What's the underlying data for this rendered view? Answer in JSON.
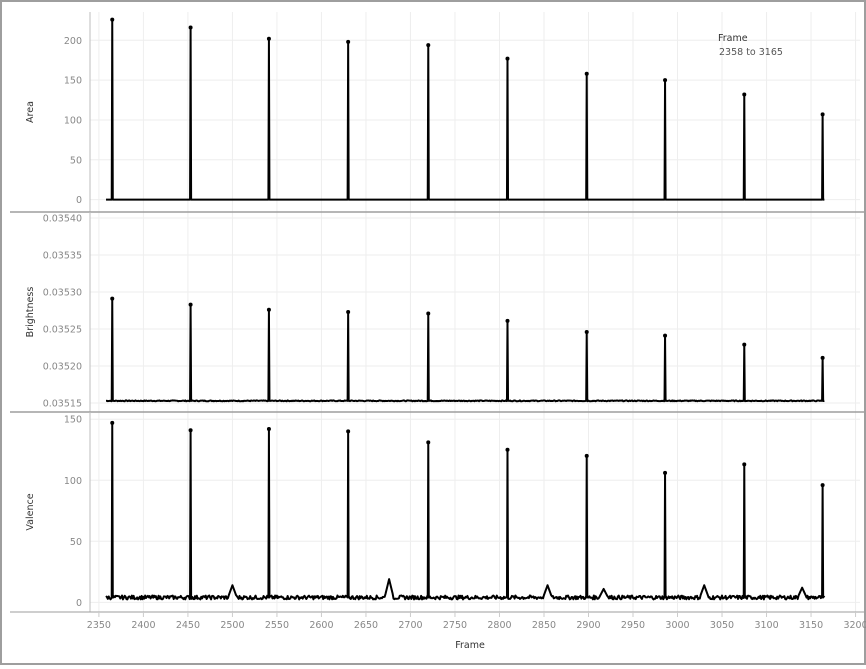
{
  "filter": {
    "title": "Frame",
    "range_text": "2358 to 3165"
  },
  "x_axis": {
    "title": "Frame",
    "ticks": [
      "2350",
      "2400",
      "2450",
      "2500",
      "2550",
      "2600",
      "2650",
      "2700",
      "2750",
      "2800",
      "2850",
      "2900",
      "2950",
      "3000",
      "3050",
      "3100",
      "3150",
      "3200"
    ]
  },
  "colors": {
    "line": "#000000",
    "grid": "#eeeeee",
    "border": "#9e9e9e",
    "tick_text": "#888888"
  },
  "chart_data": [
    {
      "type": "line",
      "ylabel": "Area",
      "xlim": [
        2340,
        3205
      ],
      "ylim": [
        -8,
        228
      ],
      "yticks": [
        "0",
        "50",
        "100",
        "150",
        "200"
      ],
      "x_range": [
        2358,
        3165
      ],
      "baseline": 0,
      "noise": 0,
      "spikes": [
        {
          "x": 2365,
          "y": 226
        },
        {
          "x": 2453,
          "y": 216
        },
        {
          "x": 2541,
          "y": 202
        },
        {
          "x": 2630,
          "y": 198
        },
        {
          "x": 2720,
          "y": 194
        },
        {
          "x": 2809,
          "y": 177
        },
        {
          "x": 2898,
          "y": 158
        },
        {
          "x": 2986,
          "y": 150
        },
        {
          "x": 3075,
          "y": 132
        },
        {
          "x": 3163,
          "y": 107
        }
      ],
      "bumps": []
    },
    {
      "type": "line",
      "ylabel": "Brightness",
      "xlim": [
        2340,
        3205
      ],
      "ylim": [
        0.035146,
        0.0354
      ],
      "yticks": [
        "0.03515",
        "0.03520",
        "0.03525",
        "0.03530",
        "0.03535",
        "0.03540"
      ],
      "x_range": [
        2358,
        3165
      ],
      "baseline": 0.035153,
      "noise": 6e-07,
      "spikes": [
        {
          "x": 2365,
          "y": 0.035291
        },
        {
          "x": 2453,
          "y": 0.035283
        },
        {
          "x": 2541,
          "y": 0.035276
        },
        {
          "x": 2630,
          "y": 0.035273
        },
        {
          "x": 2720,
          "y": 0.035271
        },
        {
          "x": 2809,
          "y": 0.035261
        },
        {
          "x": 2898,
          "y": 0.035246
        },
        {
          "x": 2986,
          "y": 0.035241
        },
        {
          "x": 3075,
          "y": 0.035229
        },
        {
          "x": 3163,
          "y": 0.035211
        }
      ],
      "bumps": []
    },
    {
      "type": "line",
      "ylabel": "Valence",
      "xlim": [
        2340,
        3205
      ],
      "ylim": [
        -3,
        151
      ],
      "yticks": [
        "0",
        "50",
        "100",
        "150"
      ],
      "x_range": [
        2358,
        3165
      ],
      "baseline": 4,
      "noise": 1.6,
      "spikes": [
        {
          "x": 2365,
          "y": 147
        },
        {
          "x": 2453,
          "y": 141
        },
        {
          "x": 2541,
          "y": 142
        },
        {
          "x": 2630,
          "y": 140
        },
        {
          "x": 2720,
          "y": 131
        },
        {
          "x": 2809,
          "y": 125
        },
        {
          "x": 2898,
          "y": 120
        },
        {
          "x": 2986,
          "y": 106
        },
        {
          "x": 3075,
          "y": 113
        },
        {
          "x": 3163,
          "y": 96
        }
      ],
      "bumps": [
        {
          "x": 2500,
          "y": 14
        },
        {
          "x": 2676,
          "y": 19
        },
        {
          "x": 2854,
          "y": 14
        },
        {
          "x": 2917,
          "y": 11
        },
        {
          "x": 3030,
          "y": 14
        },
        {
          "x": 3140,
          "y": 12
        }
      ]
    }
  ]
}
